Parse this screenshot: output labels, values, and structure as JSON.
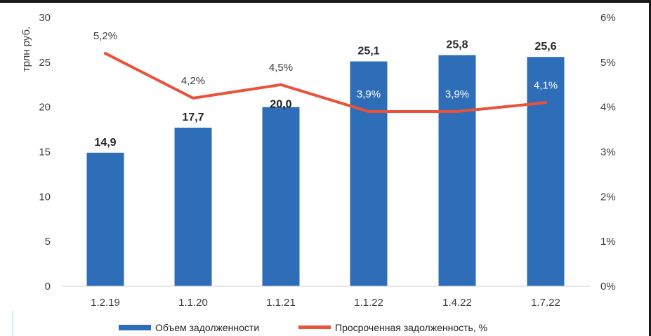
{
  "chart_data": {
    "type": "bar+line",
    "categories": [
      "1.2.19",
      "1.1.20",
      "1.1.21",
      "1.1.22",
      "1.4.22",
      "1.7.22"
    ],
    "series": [
      {
        "name": "Объем задолженности",
        "type": "bar",
        "axis": "left",
        "values": [
          14.9,
          17.7,
          20.0,
          25.1,
          25.8,
          25.6
        ],
        "labels": [
          "14,9",
          "17,7",
          "20,0",
          "25,1",
          "25,8",
          "25,6"
        ],
        "color": "#2E6DB7"
      },
      {
        "name": "Просроченная задолженность, %",
        "type": "line",
        "axis": "right",
        "values": [
          5.2,
          4.2,
          4.5,
          3.9,
          3.9,
          4.1
        ],
        "labels": [
          "5,2%",
          "4,2%",
          "4,5%",
          "3,9%",
          "3,9%",
          "4,1%"
        ],
        "color": "#E8533A"
      }
    ],
    "y_left": {
      "label": "трлн руб.",
      "range": [
        0,
        30
      ],
      "ticks": [
        "0",
        "5",
        "10",
        "15",
        "20",
        "25",
        "30"
      ]
    },
    "y_right": {
      "range": [
        0,
        6
      ],
      "ticks": [
        "0%",
        "1%",
        "2%",
        "3%",
        "4%",
        "5%",
        "6%"
      ]
    },
    "grid": false,
    "legend": "bottom"
  }
}
